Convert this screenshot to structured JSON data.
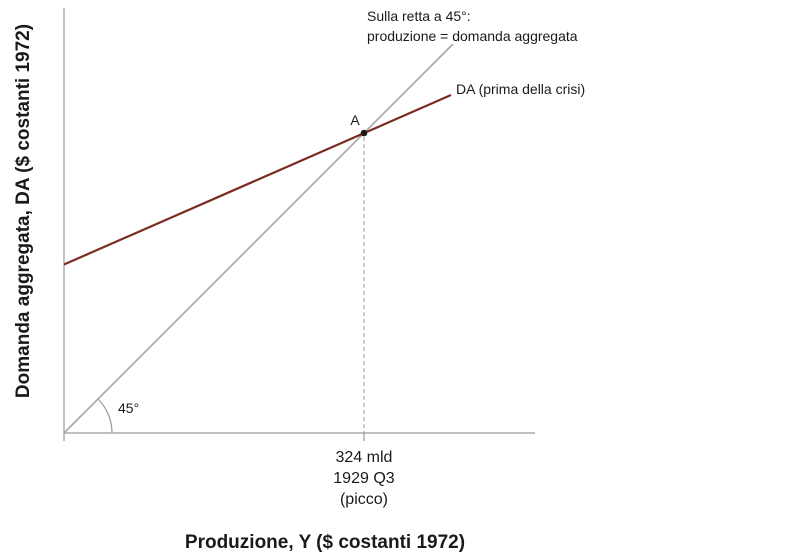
{
  "chart_data": {
    "type": "line",
    "title": "",
    "xlabel": "Produzione, Y ($ costanti 1972)",
    "ylabel": "Domanda aggregata, DA ($ costanti 1972)",
    "xlim": [
      0,
      510
    ],
    "ylim": [
      0,
      510
    ],
    "grid": false,
    "legend": "none",
    "x_tick_labels": [
      "324 mld",
      "1929 Q3",
      "(picco)"
    ],
    "x_tick_value": 324,
    "series": [
      {
        "name": "Sulla retta a 45°:\nproduzione = domanda aggregata",
        "name_lines": [
          "Sulla retta a 45°:",
          "produzione = domanda aggregata"
        ],
        "color": "#a6a6a6",
        "x": [
          0,
          420
        ],
        "y": [
          0,
          420
        ]
      },
      {
        "name": "DA (prima della crisi)",
        "color": "#7b2c20",
        "x": [
          0,
          418
        ],
        "y": [
          182,
          365
        ]
      }
    ],
    "points": [
      {
        "label": "A",
        "x": 324,
        "y": 324
      }
    ],
    "angle_label": "45°",
    "reference_line": {
      "x": 324,
      "style": "dashed"
    }
  }
}
